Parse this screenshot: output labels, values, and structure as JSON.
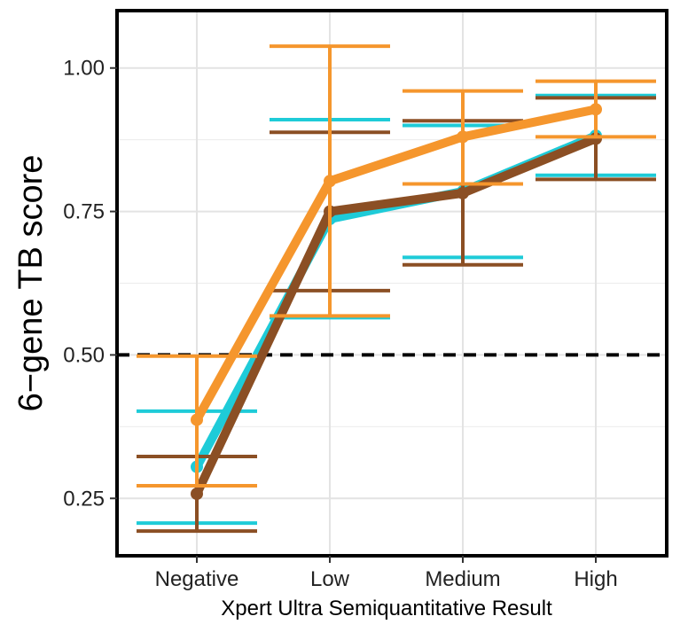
{
  "chart_data": {
    "type": "line",
    "title": "",
    "xlabel": "Xpert Ultra Semiquantitative Result",
    "ylabel": "6−gene TB score",
    "categories": [
      "Negative",
      "Low",
      "Medium",
      "High"
    ],
    "ylim": [
      0.15,
      1.1
    ],
    "yticks": [
      0.25,
      0.5,
      0.75,
      1.0
    ],
    "ytick_labels": [
      "0.25",
      "0.50",
      "0.75",
      "1.00"
    ],
    "reference_line": {
      "y": 0.5,
      "style": "dashed",
      "color": "#000000"
    },
    "grid": true,
    "legend": "none",
    "series": [
      {
        "color": "#1ECBD8",
        "values": [
          0.305,
          0.737,
          0.785,
          0.882
        ],
        "lower": [
          0.207,
          0.565,
          0.67,
          0.813
        ],
        "upper": [
          0.402,
          0.91,
          0.9,
          0.952
        ]
      },
      {
        "color": "#8B4F24",
        "values": [
          0.258,
          0.75,
          0.782,
          0.877
        ],
        "lower": [
          0.193,
          0.612,
          0.657,
          0.806
        ],
        "upper": [
          0.323,
          0.888,
          0.908,
          0.948
        ]
      },
      {
        "color": "#F5962D",
        "values": [
          0.387,
          0.803,
          0.88,
          0.928
        ],
        "lower": [
          0.272,
          0.568,
          0.798,
          0.88
        ],
        "upper": [
          0.498,
          1.038,
          0.96,
          0.977
        ]
      }
    ]
  }
}
